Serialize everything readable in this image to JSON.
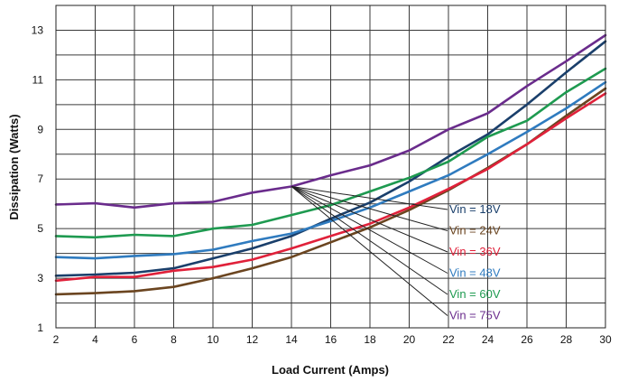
{
  "chart_data": {
    "type": "line",
    "title": "",
    "xlabel": "Load Current (Amps)",
    "ylabel": "Dissipation (Watts)",
    "xlim": [
      2,
      30
    ],
    "ylim": [
      1,
      14
    ],
    "x_ticks": [
      2,
      4,
      6,
      8,
      10,
      12,
      14,
      16,
      18,
      20,
      22,
      24,
      26,
      28,
      30
    ],
    "y_ticks": [
      1,
      3,
      5,
      7,
      9,
      11,
      13
    ],
    "grid": true,
    "legend_placement": "lower-right, with leader lines to curves",
    "x": [
      2,
      4,
      6,
      8,
      10,
      12,
      14,
      16,
      18,
      20,
      22,
      24,
      26,
      28,
      30
    ],
    "series": [
      {
        "name": "Vin = 18V",
        "color": "#1a3f6b",
        "values": [
          3.1,
          3.15,
          3.22,
          3.4,
          3.8,
          4.2,
          4.7,
          5.4,
          6.05,
          6.9,
          7.9,
          8.8,
          10.0,
          11.3,
          12.55
        ]
      },
      {
        "name": "Vin = 24V",
        "color": "#6b4520",
        "values": [
          2.35,
          2.4,
          2.48,
          2.65,
          3.0,
          3.4,
          3.85,
          4.45,
          5.05,
          5.75,
          6.55,
          7.45,
          8.4,
          9.55,
          10.65
        ]
      },
      {
        "name": "Vin = 36V",
        "color": "#e0213a",
        "values": [
          2.9,
          3.05,
          3.05,
          3.3,
          3.45,
          3.75,
          4.2,
          4.7,
          5.2,
          5.85,
          6.6,
          7.4,
          8.4,
          9.45,
          10.45
        ]
      },
      {
        "name": "Vin = 48V",
        "color": "#2f7bbf",
        "values": [
          3.85,
          3.8,
          3.9,
          3.97,
          4.15,
          4.5,
          4.8,
          5.3,
          5.85,
          6.5,
          7.15,
          8.0,
          8.9,
          9.85,
          10.9
        ]
      },
      {
        "name": "Vin = 60V",
        "color": "#1e9a50",
        "values": [
          4.7,
          4.65,
          4.75,
          4.7,
          5.0,
          5.15,
          5.55,
          5.95,
          6.5,
          7.05,
          7.7,
          8.7,
          9.35,
          10.5,
          11.45
        ]
      },
      {
        "name": "Vin = 75V",
        "color": "#6a2c8c",
        "values": [
          5.97,
          6.02,
          5.85,
          6.02,
          6.08,
          6.45,
          6.7,
          7.15,
          7.55,
          8.15,
          9.0,
          9.65,
          10.75,
          11.75,
          12.8
        ]
      }
    ]
  }
}
